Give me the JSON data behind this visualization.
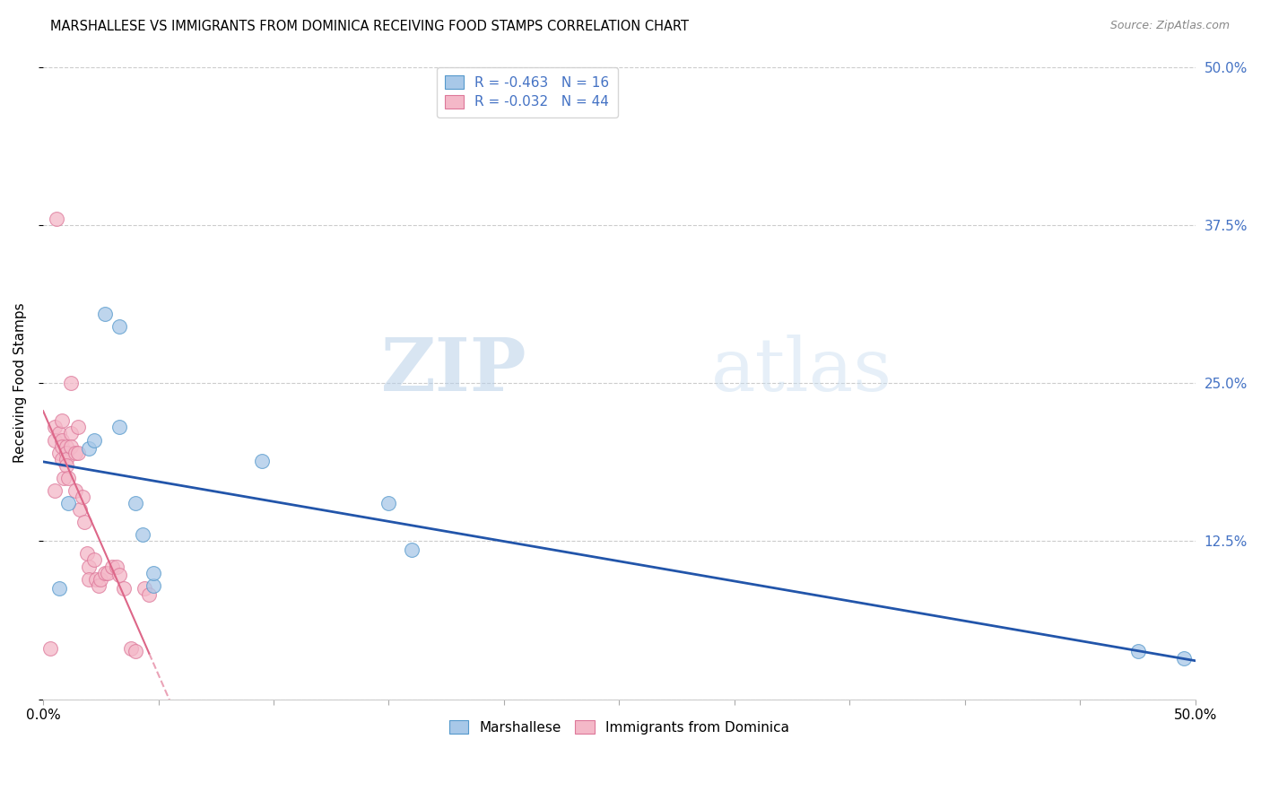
{
  "title": "MARSHALLESE VS IMMIGRANTS FROM DOMINICA RECEIVING FOOD STAMPS CORRELATION CHART",
  "source": "Source: ZipAtlas.com",
  "ylabel": "Receiving Food Stamps",
  "xlim": [
    0,
    0.5
  ],
  "ylim": [
    0,
    0.5
  ],
  "watermark_zip": "ZIP",
  "watermark_atlas": "atlas",
  "blue_R": "-0.463",
  "blue_N": "16",
  "pink_R": "-0.032",
  "pink_N": "44",
  "blue_color": "#a8c8e8",
  "pink_color": "#f4b8c8",
  "blue_edge_color": "#5599cc",
  "pink_edge_color": "#dd7799",
  "blue_line_color": "#2255aa",
  "pink_line_color": "#dd6688",
  "legend_label_blue": "Marshallese",
  "legend_label_pink": "Immigrants from Dominica",
  "blue_points_x": [
    0.007,
    0.011,
    0.02,
    0.022,
    0.027,
    0.033,
    0.033,
    0.04,
    0.043,
    0.048,
    0.048,
    0.095,
    0.15,
    0.16,
    0.475,
    0.495
  ],
  "blue_points_y": [
    0.088,
    0.155,
    0.198,
    0.205,
    0.305,
    0.295,
    0.215,
    0.155,
    0.13,
    0.09,
    0.1,
    0.188,
    0.155,
    0.118,
    0.038,
    0.032
  ],
  "pink_points_x": [
    0.003,
    0.005,
    0.005,
    0.005,
    0.006,
    0.007,
    0.007,
    0.008,
    0.008,
    0.008,
    0.008,
    0.009,
    0.01,
    0.01,
    0.01,
    0.01,
    0.011,
    0.012,
    0.012,
    0.012,
    0.014,
    0.014,
    0.015,
    0.015,
    0.016,
    0.017,
    0.018,
    0.019,
    0.02,
    0.02,
    0.022,
    0.023,
    0.024,
    0.025,
    0.027,
    0.028,
    0.03,
    0.032,
    0.033,
    0.035,
    0.038,
    0.04,
    0.044,
    0.046
  ],
  "pink_points_y": [
    0.04,
    0.215,
    0.165,
    0.205,
    0.38,
    0.21,
    0.195,
    0.22,
    0.205,
    0.2,
    0.19,
    0.175,
    0.2,
    0.195,
    0.19,
    0.185,
    0.175,
    0.25,
    0.21,
    0.2,
    0.195,
    0.165,
    0.215,
    0.195,
    0.15,
    0.16,
    0.14,
    0.115,
    0.105,
    0.095,
    0.11,
    0.095,
    0.09,
    0.095,
    0.1,
    0.1,
    0.105,
    0.105,
    0.098,
    0.088,
    0.04,
    0.038,
    0.088,
    0.083
  ]
}
